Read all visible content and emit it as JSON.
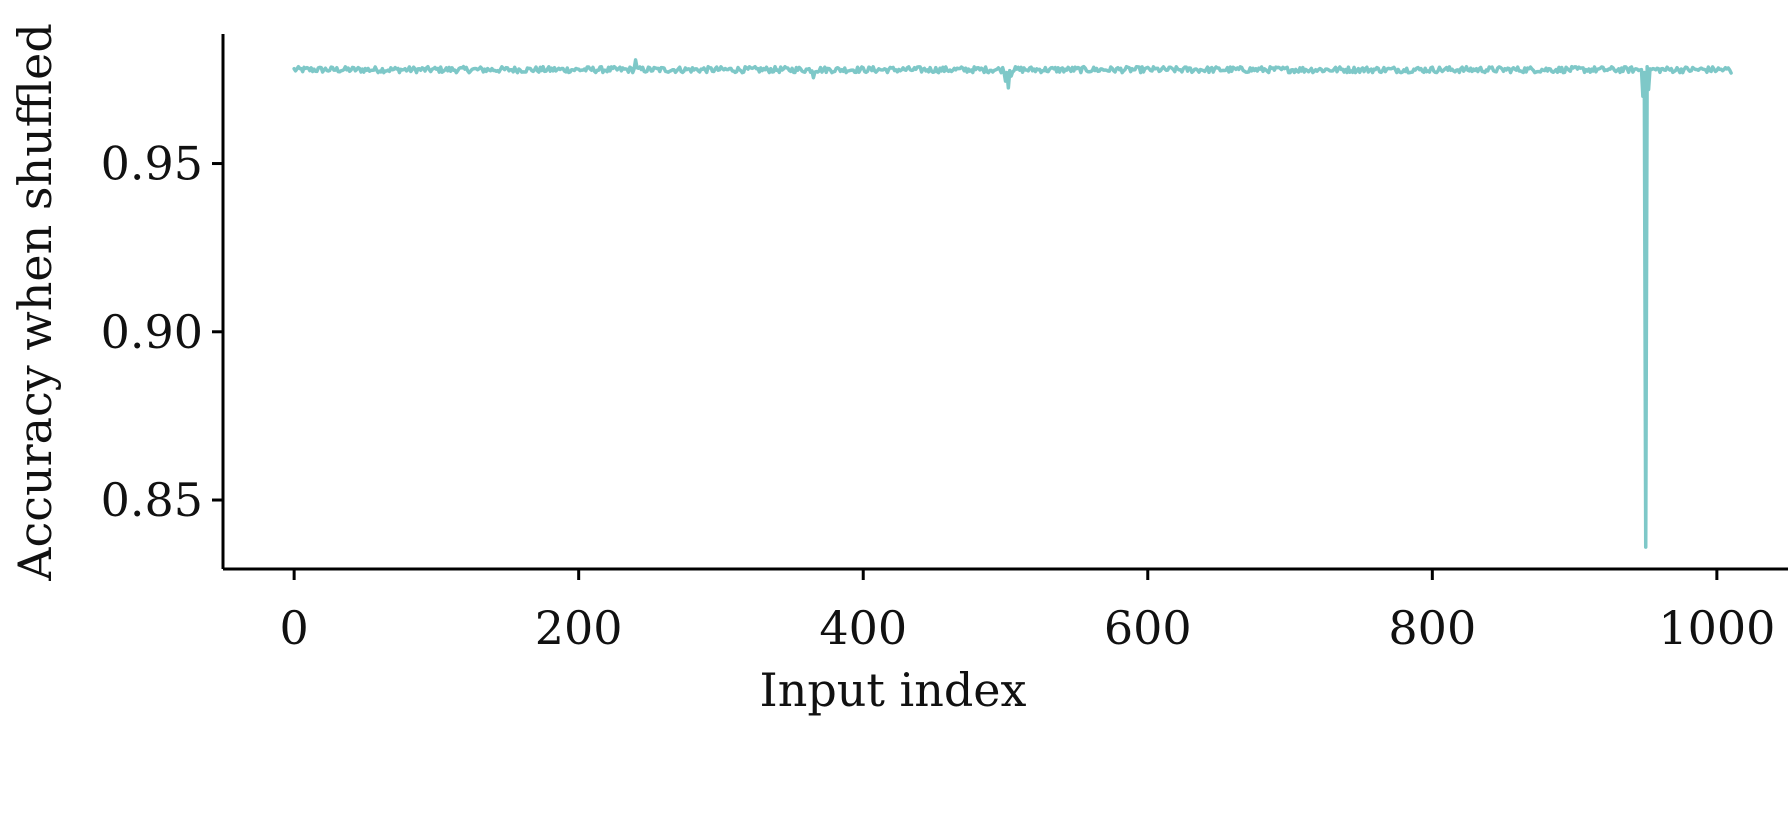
{
  "chart_data": {
    "type": "line",
    "title": "",
    "xlabel": "Input index",
    "ylabel": "Accuracy when shuffled",
    "xlim": [
      -50,
      1050
    ],
    "ylim": [
      0.8295,
      0.9885
    ],
    "xticks": [
      0,
      200,
      400,
      600,
      800,
      1000
    ],
    "xtick_labels": [
      "0",
      "200",
      "400",
      "600",
      "800",
      "1000"
    ],
    "yticks": [
      0.85,
      0.9,
      0.95
    ],
    "ytick_labels": [
      "0.85",
      "0.90",
      "0.95"
    ],
    "grid": false,
    "legend": "none",
    "series": [
      {
        "color": "#7ec8c8",
        "x_range": [
          0,
          1010
        ],
        "baseline": 0.9779,
        "noise_amplitude": 0.0009,
        "notable_points": [
          {
            "x": 240,
            "y": 0.9808
          },
          {
            "x": 365,
            "y": 0.9755
          },
          {
            "x": 500,
            "y": 0.9745
          },
          {
            "x": 502,
            "y": 0.9725
          },
          {
            "x": 504,
            "y": 0.976
          },
          {
            "x": 948,
            "y": 0.97
          },
          {
            "x": 950,
            "y": 0.836
          },
          {
            "x": 952,
            "y": 0.972
          },
          {
            "x": 1010,
            "y": 0.9769
          }
        ]
      }
    ]
  }
}
